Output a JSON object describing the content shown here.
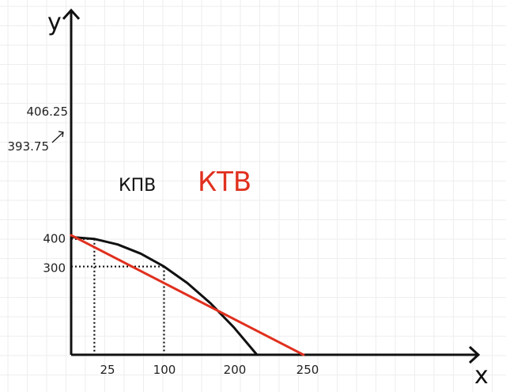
{
  "chart_data": {
    "type": "line",
    "title": "",
    "xlabel": "x",
    "ylabel": "y",
    "xlim": [
      0,
      350
    ],
    "ylim": [
      0,
      420
    ],
    "grid": true,
    "x_ticks": [
      "25",
      "100",
      "200",
      "250"
    ],
    "y_ticks": [
      "400",
      "300"
    ],
    "annotations": {
      "y_intercept_tangent": "406.25",
      "y_at_25": "393.75"
    },
    "series": [
      {
        "name": "КПВ",
        "color": "#111111",
        "x": [
          0,
          25,
          50,
          75,
          100,
          125,
          150,
          175,
          200
        ],
        "y": [
          400,
          393.75,
          375,
          343.75,
          300,
          243.75,
          175,
          93.75,
          0
        ]
      },
      {
        "name": "КТВ",
        "color": "#e0301e",
        "x": [
          0,
          250
        ],
        "y": [
          406.25,
          0
        ]
      }
    ]
  }
}
